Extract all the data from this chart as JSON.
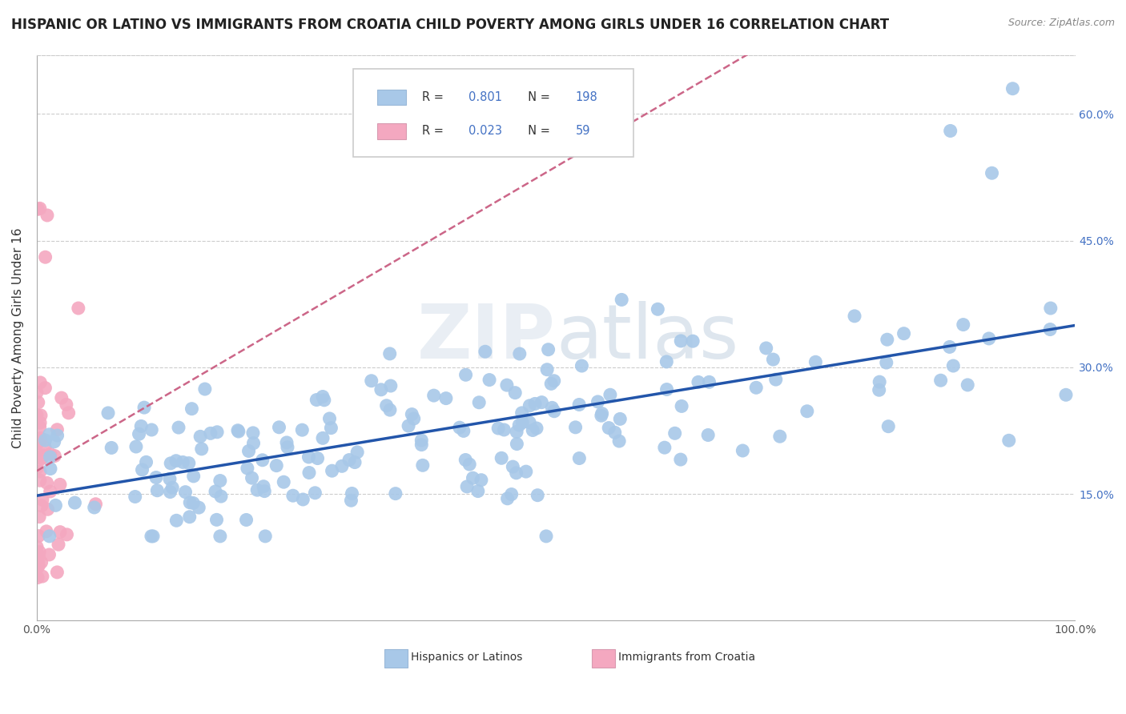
{
  "title": "HISPANIC OR LATINO VS IMMIGRANTS FROM CROATIA CHILD POVERTY AMONG GIRLS UNDER 16 CORRELATION CHART",
  "source": "Source: ZipAtlas.com",
  "ylabel": "Child Poverty Among Girls Under 16",
  "xlim": [
    0,
    1.0
  ],
  "ylim": [
    0,
    0.67
  ],
  "xtick_positions": [
    0.0,
    0.1,
    0.2,
    0.3,
    0.4,
    0.5,
    0.6,
    0.7,
    0.8,
    0.9,
    1.0
  ],
  "xtick_labels": [
    "0.0%",
    "",
    "",
    "",
    "",
    "",
    "",
    "",
    "",
    "",
    "100.0%"
  ],
  "ytick_positions": [
    0.15,
    0.3,
    0.45,
    0.6
  ],
  "ytick_labels": [
    "15.0%",
    "30.0%",
    "45.0%",
    "60.0%"
  ],
  "blue_R": 0.801,
  "blue_N": 198,
  "pink_R": 0.023,
  "pink_N": 59,
  "blue_color": "#a8c8e8",
  "pink_color": "#f4a8c0",
  "blue_line_color": "#2255aa",
  "pink_line_color": "#cc6688",
  "watermark_zip": "ZIP",
  "watermark_atlas": "atlas",
  "background_color": "#ffffff",
  "grid_color": "#cccccc",
  "legend_label_blue": "Hispanics or Latinos",
  "legend_label_pink": "Immigrants from Croatia",
  "title_fontsize": 12,
  "source_fontsize": 9,
  "axis_label_fontsize": 11,
  "tick_label_color": "#4472c4",
  "tick_label_color_x": "#555555"
}
